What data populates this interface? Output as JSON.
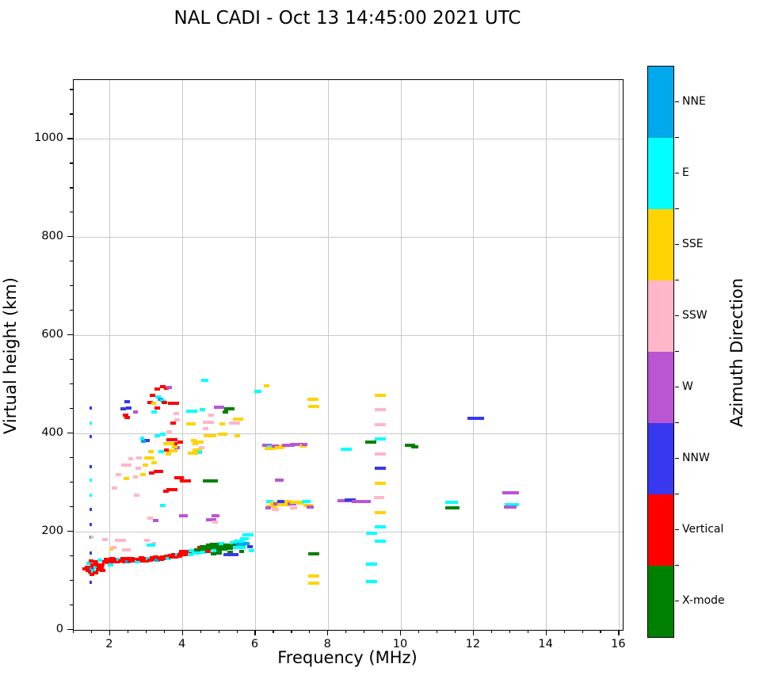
{
  "header": {
    "title": "NAL CADI - Oct 13 14:45:00 2021 UTC"
  },
  "chart_data": {
    "type": "scatter",
    "title": "NAL CADI - Oct 13 14:45:00 2021 UTC",
    "xlabel": "Frequency (MHz)",
    "ylabel": "Virtual height (km)",
    "colorbar_label": "Azimuth Direction",
    "xlim": [
      1,
      16.1
    ],
    "ylim": [
      0,
      1120
    ],
    "xticks": [
      2,
      4,
      6,
      8,
      10,
      12,
      14,
      16
    ],
    "yticks": [
      0,
      200,
      400,
      600,
      800,
      1000
    ],
    "x_minor_step": 0.5,
    "y_minor_step": 50,
    "grid": "on",
    "legend_position": "right-colorbar",
    "categories": [
      {
        "name": "NNE",
        "color": "#00a8ec"
      },
      {
        "name": "E",
        "color": "#00ffff"
      },
      {
        "name": "SSE",
        "color": "#ffd300"
      },
      {
        "name": "SSW",
        "color": "#ffb6c8"
      },
      {
        "name": "W",
        "color": "#ba55d3"
      },
      {
        "name": "NNW",
        "color": "#3838f0"
      },
      {
        "name": "Vertical",
        "color": "#ff0000"
      },
      {
        "name": "X-mode",
        "color": "#008000"
      }
    ],
    "points_format": "[frequency_MHz, virtual_height_km, category_index, optional_width_MHz]",
    "points": [
      [
        1.47,
        452,
        5,
        0.07
      ],
      [
        1.47,
        421,
        1,
        0.07
      ],
      [
        1.47,
        394,
        5,
        0.07
      ],
      [
        1.47,
        333,
        5,
        0.07
      ],
      [
        1.47,
        305,
        1,
        0.07
      ],
      [
        1.47,
        275,
        1,
        0.07
      ],
      [
        1.47,
        246,
        5,
        0.07
      ],
      [
        1.47,
        214,
        5,
        0.07
      ],
      [
        1.47,
        189,
        5,
        0.07
      ],
      [
        1.47,
        156,
        5,
        0.07
      ],
      [
        1.47,
        97,
        5,
        0.07
      ],
      [
        4.6,
        509,
        1,
        0.2
      ],
      [
        3.45,
        496,
        6
      ],
      [
        3.55,
        492,
        6
      ],
      [
        3.62,
        494,
        4
      ],
      [
        3.3,
        490,
        6
      ],
      [
        3.17,
        478,
        6
      ],
      [
        3.32,
        474,
        1
      ],
      [
        3.38,
        470,
        0
      ],
      [
        3.45,
        466,
        1
      ],
      [
        3.5,
        463,
        6
      ],
      [
        3.1,
        463,
        6
      ],
      [
        3.2,
        461,
        2
      ],
      [
        3.29,
        452,
        6
      ],
      [
        3.22,
        444,
        1
      ],
      [
        2.48,
        464,
        5
      ],
      [
        2.52,
        452,
        5
      ],
      [
        2.37,
        450,
        5
      ],
      [
        2.7,
        443,
        4
      ],
      [
        2.42,
        438,
        6
      ],
      [
        2.48,
        433,
        6
      ],
      [
        3.75,
        461,
        6,
        0.3
      ],
      [
        3.74,
        422,
        6
      ],
      [
        3.85,
        428,
        3
      ],
      [
        3.82,
        440,
        3
      ],
      [
        5.0,
        454,
        4,
        0.3
      ],
      [
        5.28,
        450,
        7,
        0.3
      ],
      [
        5.17,
        443,
        7
      ],
      [
        4.54,
        449,
        1
      ],
      [
        4.25,
        446,
        1,
        0.3
      ],
      [
        4.17,
        420,
        2
      ],
      [
        4.78,
        437,
        3
      ],
      [
        4.7,
        423,
        3,
        0.3
      ],
      [
        4.28,
        420,
        2
      ],
      [
        4.62,
        410,
        3
      ],
      [
        5.09,
        420,
        2
      ],
      [
        4.75,
        396,
        2,
        0.35
      ],
      [
        5.1,
        398,
        2,
        0.25
      ],
      [
        5.5,
        395,
        2
      ],
      [
        5.42,
        422,
        3,
        0.3
      ],
      [
        5.52,
        430,
        2,
        0.3
      ],
      [
        3.63,
        403,
        3
      ],
      [
        3.46,
        398,
        1
      ],
      [
        3.02,
        386,
        5
      ],
      [
        2.88,
        391,
        1,
        0.12
      ],
      [
        2.92,
        384,
        0,
        0.12
      ],
      [
        3.3,
        395,
        1
      ],
      [
        3.7,
        388,
        6,
        0.3
      ],
      [
        3.78,
        380,
        6
      ],
      [
        3.93,
        382,
        6
      ],
      [
        3.85,
        371,
        4
      ],
      [
        3.62,
        380,
        2,
        0.3
      ],
      [
        3.7,
        365,
        2,
        0.3
      ],
      [
        3.78,
        373,
        2
      ],
      [
        3.6,
        358,
        2
      ],
      [
        4.3,
        386,
        2
      ],
      [
        4.45,
        383,
        2,
        0.25
      ],
      [
        4.52,
        371,
        3
      ],
      [
        4.4,
        367,
        2,
        0.25
      ],
      [
        4.46,
        362,
        1
      ],
      [
        4.28,
        360,
        2,
        0.3
      ],
      [
        4.35,
        379,
        2
      ],
      [
        3.55,
        367,
        6
      ],
      [
        3.4,
        363,
        1
      ],
      [
        3.12,
        363,
        2
      ],
      [
        3.08,
        351,
        2,
        0.3
      ],
      [
        2.8,
        350,
        3
      ],
      [
        2.57,
        348,
        3
      ],
      [
        2.45,
        335,
        3,
        0.3
      ],
      [
        3.22,
        341,
        2
      ],
      [
        2.97,
        335,
        2
      ],
      [
        2.77,
        330,
        3
      ],
      [
        3.33,
        322,
        6,
        0.25
      ],
      [
        3.14,
        319,
        6
      ],
      [
        2.7,
        311,
        3
      ],
      [
        2.9,
        317,
        2
      ],
      [
        2.23,
        316,
        3
      ],
      [
        2.44,
        308,
        2
      ],
      [
        2.13,
        289,
        3
      ],
      [
        3.9,
        310,
        6,
        0.25
      ],
      [
        4.08,
        303,
        6,
        0.3
      ],
      [
        4.7,
        303,
        7,
        0.3
      ],
      [
        4.88,
        303,
        7,
        0.15
      ],
      [
        3.7,
        285,
        6,
        0.3
      ],
      [
        3.54,
        283,
        6
      ],
      [
        2.73,
        274,
        3
      ],
      [
        3.46,
        254,
        1
      ],
      [
        6.07,
        486,
        1,
        0.2
      ],
      [
        6.3,
        497,
        2,
        0.15
      ],
      [
        3.1,
        227,
        3
      ],
      [
        3.25,
        222,
        4
      ],
      [
        4.02,
        233,
        4,
        0.25
      ],
      [
        4.78,
        225,
        4,
        0.3
      ],
      [
        4.88,
        220,
        3
      ],
      [
        4.9,
        233,
        4,
        0.2
      ],
      [
        1.5,
        189,
        3,
        0.08
      ],
      [
        1.87,
        184,
        3
      ],
      [
        2.28,
        182,
        3,
        0.3
      ],
      [
        3.02,
        182,
        3
      ],
      [
        3.2,
        176,
        3
      ],
      [
        2.04,
        165,
        2,
        0.1
      ],
      [
        2.1,
        168,
        3
      ],
      [
        3.13,
        173,
        1,
        0.25
      ],
      [
        2.45,
        163,
        3,
        0.25
      ],
      [
        1.3,
        124,
        6,
        0.1
      ],
      [
        1.38,
        128,
        6
      ],
      [
        1.4,
        121,
        6
      ],
      [
        1.42,
        135,
        1
      ],
      [
        1.45,
        128,
        6
      ],
      [
        1.46,
        118,
        6
      ],
      [
        1.48,
        140,
        6
      ],
      [
        1.5,
        125,
        0
      ],
      [
        1.5,
        113,
        6
      ],
      [
        1.53,
        132,
        6
      ],
      [
        1.55,
        120,
        1
      ],
      [
        1.57,
        128,
        6
      ],
      [
        1.6,
        138,
        6
      ],
      [
        1.6,
        116,
        6
      ],
      [
        1.63,
        127,
        1
      ],
      [
        1.66,
        133,
        6
      ],
      [
        1.68,
        122,
        6
      ],
      [
        1.7,
        129,
        6
      ],
      [
        1.72,
        142,
        1
      ],
      [
        1.75,
        126,
        6
      ],
      [
        1.78,
        133,
        6
      ],
      [
        1.8,
        121,
        6
      ],
      [
        1.85,
        139,
        6
      ],
      [
        1.9,
        144,
        6
      ],
      [
        1.95,
        137,
        6
      ],
      [
        2.0,
        141,
        6
      ],
      [
        2.02,
        133,
        1
      ],
      [
        2.06,
        145,
        6
      ],
      [
        2.1,
        139,
        6
      ],
      [
        2.15,
        143,
        6
      ],
      [
        2.2,
        138,
        6
      ],
      [
        2.25,
        144,
        1
      ],
      [
        2.3,
        140,
        6
      ],
      [
        2.36,
        145,
        6
      ],
      [
        2.4,
        139,
        6
      ],
      [
        2.46,
        143,
        6
      ],
      [
        2.5,
        138,
        0
      ],
      [
        2.52,
        146,
        6
      ],
      [
        2.56,
        141,
        6
      ],
      [
        2.6,
        146,
        6
      ],
      [
        2.66,
        140,
        6
      ],
      [
        2.7,
        144,
        6
      ],
      [
        2.76,
        138,
        1
      ],
      [
        2.8,
        143,
        6
      ],
      [
        2.86,
        147,
        6
      ],
      [
        2.9,
        141,
        6
      ],
      [
        2.96,
        145,
        6
      ],
      [
        3.0,
        140,
        6
      ],
      [
        3.06,
        146,
        1
      ],
      [
        3.1,
        142,
        6
      ],
      [
        3.16,
        147,
        6
      ],
      [
        3.2,
        143,
        6
      ],
      [
        3.26,
        148,
        6
      ],
      [
        3.3,
        142,
        0
      ],
      [
        3.36,
        147,
        6
      ],
      [
        3.4,
        144,
        6
      ],
      [
        3.46,
        149,
        6
      ],
      [
        3.5,
        145,
        6
      ],
      [
        3.56,
        150,
        6
      ],
      [
        3.6,
        146,
        1
      ],
      [
        3.66,
        151,
        6
      ],
      [
        3.7,
        148,
        6
      ],
      [
        3.76,
        153,
        6
      ],
      [
        3.8,
        149,
        6
      ],
      [
        3.86,
        154,
        1
      ],
      [
        3.9,
        150,
        6
      ],
      [
        3.96,
        155,
        6
      ],
      [
        4.0,
        153,
        6,
        0.3
      ],
      [
        4.05,
        159,
        6,
        0.3
      ],
      [
        4.12,
        153,
        6,
        0.3
      ],
      [
        4.18,
        158,
        6
      ],
      [
        4.22,
        154,
        1
      ],
      [
        4.28,
        161,
        1,
        0.25
      ],
      [
        4.32,
        156,
        1
      ],
      [
        4.38,
        163,
        7
      ],
      [
        4.42,
        157,
        1
      ],
      [
        4.47,
        168,
        6
      ],
      [
        4.52,
        163,
        7
      ],
      [
        4.56,
        158,
        1
      ],
      [
        4.6,
        170,
        7,
        0.25
      ],
      [
        4.66,
        164,
        7
      ],
      [
        4.7,
        159,
        6
      ],
      [
        4.76,
        172,
        7,
        0.25
      ],
      [
        4.8,
        166,
        7
      ],
      [
        4.84,
        155,
        7
      ],
      [
        4.86,
        161,
        1
      ],
      [
        4.9,
        174,
        7,
        0.3
      ],
      [
        4.96,
        168,
        7
      ],
      [
        5.0,
        163,
        7
      ],
      [
        5.0,
        157,
        7
      ],
      [
        5.06,
        176,
        1
      ],
      [
        5.1,
        170,
        7,
        0.3
      ],
      [
        5.16,
        165,
        7
      ],
      [
        5.2,
        154,
        5
      ],
      [
        5.26,
        172,
        7,
        0.3
      ],
      [
        5.3,
        167,
        7
      ],
      [
        5.3,
        158,
        7
      ],
      [
        5.36,
        178,
        1
      ],
      [
        5.4,
        154,
        5,
        0.25
      ],
      [
        5.46,
        173,
        7
      ],
      [
        5.5,
        168,
        1,
        0.25
      ],
      [
        5.56,
        180,
        1,
        0.3
      ],
      [
        5.6,
        174,
        0,
        0.25
      ],
      [
        5.62,
        160,
        7
      ],
      [
        5.66,
        168,
        1
      ],
      [
        5.7,
        186,
        1,
        0.25
      ],
      [
        5.76,
        176,
        0
      ],
      [
        5.8,
        193,
        1,
        0.3
      ],
      [
        5.85,
        170,
        5
      ],
      [
        5.9,
        161,
        1
      ],
      [
        6.32,
        376,
        4,
        0.25
      ],
      [
        6.45,
        372,
        1,
        0.25
      ],
      [
        6.4,
        369,
        2,
        0.3
      ],
      [
        6.55,
        375,
        4,
        0.2
      ],
      [
        6.65,
        371,
        2,
        0.25
      ],
      [
        6.75,
        374,
        2,
        0.2
      ],
      [
        6.9,
        376,
        4,
        0.35
      ],
      [
        7.12,
        378,
        4,
        0.35
      ],
      [
        7.3,
        374,
        2,
        0.2
      ],
      [
        7.35,
        377,
        4,
        0.15
      ],
      [
        6.4,
        262,
        1,
        0.2
      ],
      [
        6.45,
        251,
        2,
        0.3
      ],
      [
        6.52,
        259,
        2,
        0.25
      ],
      [
        6.6,
        257,
        4,
        0.2
      ],
      [
        6.7,
        261,
        5,
        0.2
      ],
      [
        6.78,
        255,
        2,
        0.35
      ],
      [
        6.9,
        262,
        2,
        0.2
      ],
      [
        7.0,
        256,
        4,
        0.25
      ],
      [
        7.05,
        248,
        3,
        0.2
      ],
      [
        7.12,
        260,
        2,
        0.35
      ],
      [
        7.25,
        258,
        2,
        0.2
      ],
      [
        7.4,
        262,
        1,
        0.25
      ],
      [
        7.45,
        254,
        2,
        0.25
      ],
      [
        7.5,
        250,
        4,
        0.2
      ],
      [
        6.55,
        245,
        3,
        0.2
      ],
      [
        6.35,
        248,
        4,
        0.15
      ],
      [
        6.65,
        305,
        4,
        0.25
      ],
      [
        7.58,
        469,
        2,
        0.3
      ],
      [
        7.6,
        455,
        2,
        0.3
      ],
      [
        7.6,
        155,
        7,
        0.3
      ],
      [
        7.6,
        110,
        2,
        0.3
      ],
      [
        7.6,
        96,
        2,
        0.3
      ],
      [
        8.5,
        368,
        1,
        0.3
      ],
      [
        8.45,
        263,
        4,
        0.4
      ],
      [
        8.6,
        265,
        5,
        0.3
      ],
      [
        8.78,
        262,
        4,
        0.25
      ],
      [
        8.95,
        261,
        4,
        0.45
      ],
      [
        9.17,
        383,
        7,
        0.3
      ],
      [
        9.43,
        477,
        2,
        0.3
      ],
      [
        9.43,
        448,
        3,
        0.3
      ],
      [
        9.43,
        418,
        3,
        0.3
      ],
      [
        9.43,
        389,
        1,
        0.3
      ],
      [
        9.43,
        358,
        3,
        0.3
      ],
      [
        9.43,
        330,
        5,
        0.3
      ],
      [
        9.43,
        298,
        2,
        0.3
      ],
      [
        9.4,
        270,
        3,
        0.3
      ],
      [
        9.43,
        239,
        2,
        0.3
      ],
      [
        9.43,
        210,
        1,
        0.3
      ],
      [
        9.2,
        197,
        1,
        0.3
      ],
      [
        9.43,
        181,
        1,
        0.3
      ],
      [
        9.2,
        134,
        1,
        0.3
      ],
      [
        9.2,
        99,
        1,
        0.3
      ],
      [
        10.25,
        376,
        7,
        0.3
      ],
      [
        10.38,
        373,
        7,
        0.18
      ],
      [
        11.95,
        431,
        5,
        0.22
      ],
      [
        12.17,
        431,
        5,
        0.22
      ],
      [
        11.4,
        260,
        1,
        0.35
      ],
      [
        11.42,
        248,
        7,
        0.4
      ],
      [
        13.02,
        279,
        4,
        0.45
      ],
      [
        13.05,
        255,
        1,
        0.4
      ],
      [
        13.0,
        250,
        4,
        0.35
      ]
    ]
  }
}
